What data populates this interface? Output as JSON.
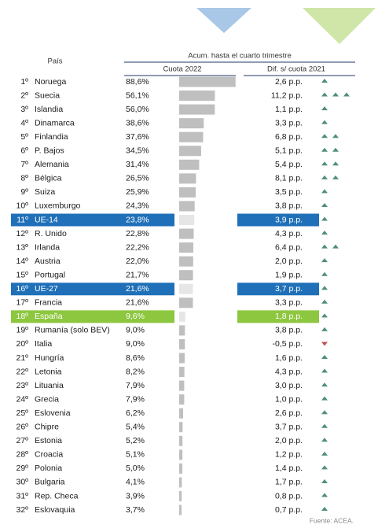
{
  "table": {
    "header": {
      "country": "País",
      "group": "Acum. hasta el cuarto trimestre",
      "share": "Cuota 2022",
      "diff": "Dif. s/ cuota 2021"
    },
    "rows": [
      {
        "rank": "1º",
        "country": "Noruega",
        "value": 88.6,
        "value_label": "88,6%",
        "diff": 2.6,
        "diff_label": "2,6 p.p.",
        "trend": "up",
        "arrows": 1
      },
      {
        "rank": "2º",
        "country": "Suecia",
        "value": 56.1,
        "value_label": "56,1%",
        "diff": 11.2,
        "diff_label": "11,2 p.p.",
        "trend": "up",
        "arrows": 3
      },
      {
        "rank": "3º",
        "country": "Islandia",
        "value": 56.0,
        "value_label": "56,0%",
        "diff": 1.1,
        "diff_label": "1,1 p.p.",
        "trend": "up",
        "arrows": 1
      },
      {
        "rank": "4º",
        "country": "Dinamarca",
        "value": 38.6,
        "value_label": "38,6%",
        "diff": 3.3,
        "diff_label": "3,3 p.p.",
        "trend": "up",
        "arrows": 1
      },
      {
        "rank": "5º",
        "country": "Finlandia",
        "value": 37.6,
        "value_label": "37,6%",
        "diff": 6.8,
        "diff_label": "6,8 p.p.",
        "trend": "up",
        "arrows": 2
      },
      {
        "rank": "6º",
        "country": "P. Bajos",
        "value": 34.5,
        "value_label": "34,5%",
        "diff": 5.1,
        "diff_label": "5,1 p.p.",
        "trend": "up",
        "arrows": 2
      },
      {
        "rank": "7º",
        "country": "Alemania",
        "value": 31.4,
        "value_label": "31,4%",
        "diff": 5.4,
        "diff_label": "5,4 p.p.",
        "trend": "up",
        "arrows": 2
      },
      {
        "rank": "8º",
        "country": "Bélgica",
        "value": 26.5,
        "value_label": "26,5%",
        "diff": 8.1,
        "diff_label": "8,1 p.p.",
        "trend": "up",
        "arrows": 2
      },
      {
        "rank": "9º",
        "country": "Suiza",
        "value": 25.9,
        "value_label": "25,9%",
        "diff": 3.5,
        "diff_label": "3,5 p.p.",
        "trend": "up",
        "arrows": 1
      },
      {
        "rank": "10º",
        "country": "Luxemburgo",
        "value": 24.3,
        "value_label": "24,3%",
        "diff": 3.8,
        "diff_label": "3,8 p.p.",
        "trend": "up",
        "arrows": 1
      },
      {
        "rank": "11º",
        "country": "UE-14",
        "value": 23.8,
        "value_label": "23,8%",
        "diff": 3.9,
        "diff_label": "3,9 p.p.",
        "trend": "up",
        "arrows": 1,
        "highlight": "#1f70b8"
      },
      {
        "rank": "12º",
        "country": "R. Unido",
        "value": 22.8,
        "value_label": "22,8%",
        "diff": 4.3,
        "diff_label": "4,3 p.p.",
        "trend": "up",
        "arrows": 1
      },
      {
        "rank": "13º",
        "country": "Irlanda",
        "value": 22.2,
        "value_label": "22,2%",
        "diff": 6.4,
        "diff_label": "6,4 p.p.",
        "trend": "up",
        "arrows": 2
      },
      {
        "rank": "14º",
        "country": "Austria",
        "value": 22.0,
        "value_label": "22,0%",
        "diff": 2.0,
        "diff_label": "2,0 p.p.",
        "trend": "up",
        "arrows": 1
      },
      {
        "rank": "15º",
        "country": "Portugal",
        "value": 21.7,
        "value_label": "21,7%",
        "diff": 1.9,
        "diff_label": "1,9 p.p.",
        "trend": "up",
        "arrows": 1
      },
      {
        "rank": "16º",
        "country": "UE-27",
        "value": 21.6,
        "value_label": "21,6%",
        "diff": 3.7,
        "diff_label": "3,7 p.p.",
        "trend": "up",
        "arrows": 1,
        "highlight": "#1f70b8"
      },
      {
        "rank": "17º",
        "country": "Francia",
        "value": 21.6,
        "value_label": "21,6%",
        "diff": 3.3,
        "diff_label": "3,3 p.p.",
        "trend": "up",
        "arrows": 1
      },
      {
        "rank": "18º",
        "country": "España",
        "value": 9.6,
        "value_label": "9,6%",
        "diff": 1.8,
        "diff_label": "1,8 p.p.",
        "trend": "up",
        "arrows": 1,
        "highlight": "#8dc63f"
      },
      {
        "rank": "19º",
        "country": "Rumanía (solo BEV)",
        "value": 9.0,
        "value_label": "9,0%",
        "diff": 3.8,
        "diff_label": "3,8 p.p.",
        "trend": "up",
        "arrows": 1
      },
      {
        "rank": "20º",
        "country": "Italia",
        "value": 9.0,
        "value_label": "9,0%",
        "diff": -0.5,
        "diff_label": "-0,5 p.p.",
        "trend": "down",
        "arrows": 1
      },
      {
        "rank": "21º",
        "country": "Hungría",
        "value": 8.6,
        "value_label": "8,6%",
        "diff": 1.6,
        "diff_label": "1,6 p.p.",
        "trend": "up",
        "arrows": 1
      },
      {
        "rank": "22º",
        "country": "Letonia",
        "value": 8.2,
        "value_label": "8,2%",
        "diff": 4.3,
        "diff_label": "4,3 p.p.",
        "trend": "up",
        "arrows": 1
      },
      {
        "rank": "23º",
        "country": "Lituania",
        "value": 7.9,
        "value_label": "7,9%",
        "diff": 3.0,
        "diff_label": "3,0 p.p.",
        "trend": "up",
        "arrows": 1
      },
      {
        "rank": "24º",
        "country": "Grecia",
        "value": 7.9,
        "value_label": "7,9%",
        "diff": 1.0,
        "diff_label": "1,0 p.p.",
        "trend": "up",
        "arrows": 1
      },
      {
        "rank": "25º",
        "country": "Eslovenia",
        "value": 6.2,
        "value_label": "6,2%",
        "diff": 2.6,
        "diff_label": "2,6 p.p.",
        "trend": "up",
        "arrows": 1
      },
      {
        "rank": "26º",
        "country": "Chipre",
        "value": 5.4,
        "value_label": "5,4%",
        "diff": 3.7,
        "diff_label": "3,7 p.p.",
        "trend": "up",
        "arrows": 1
      },
      {
        "rank": "27º",
        "country": "Estonia",
        "value": 5.2,
        "value_label": "5,2%",
        "diff": 2.0,
        "diff_label": "2,0 p.p.",
        "trend": "up",
        "arrows": 1
      },
      {
        "rank": "28º",
        "country": "Croacia",
        "value": 5.1,
        "value_label": "5,1%",
        "diff": 1.2,
        "diff_label": "1,2 p.p.",
        "trend": "up",
        "arrows": 1
      },
      {
        "rank": "29º",
        "country": "Polonia",
        "value": 5.0,
        "value_label": "5,0%",
        "diff": 1.4,
        "diff_label": "1,4 p.p.",
        "trend": "up",
        "arrows": 1
      },
      {
        "rank": "30º",
        "country": "Bulgaria",
        "value": 4.1,
        "value_label": "4,1%",
        "diff": 1.7,
        "diff_label": "1,7 p.p.",
        "trend": "up",
        "arrows": 1
      },
      {
        "rank": "31º",
        "country": "Rep. Checa",
        "value": 3.9,
        "value_label": "3,9%",
        "diff": 0.8,
        "diff_label": "0,8 p.p.",
        "trend": "up",
        "arrows": 1
      },
      {
        "rank": "32º",
        "country": "Eslovaquia",
        "value": 3.7,
        "value_label": "3,7%",
        "diff": 0.7,
        "diff_label": "0,7 p.p.",
        "trend": "up",
        "arrows": 1
      }
    ],
    "source": "Fuente: ACEA."
  }
}
